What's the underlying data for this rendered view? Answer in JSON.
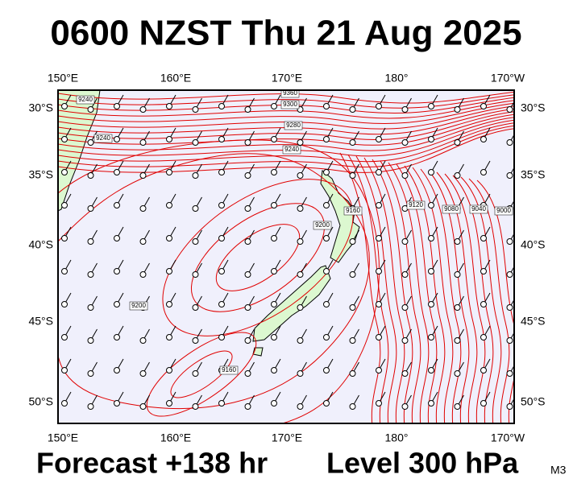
{
  "title": "0600 NZST Thu 21 Aug 2025",
  "map": {
    "longitude_labels": [
      "150°E",
      "160°E",
      "170°E",
      "180°",
      "170°W"
    ],
    "latitude_labels": [
      "30°S",
      "35°S",
      "40°S",
      "45°S",
      "50°S"
    ],
    "contour_labels": [
      "9240",
      "9360",
      "9300",
      "9280",
      "9240",
      "9240",
      "9200",
      "9160",
      "9200",
      "9160",
      "9120",
      "9080",
      "9040",
      "9000"
    ]
  },
  "footer": {
    "forecast": "Forecast +138 hr",
    "level": "Level 300 hPa",
    "model": "M3"
  }
}
